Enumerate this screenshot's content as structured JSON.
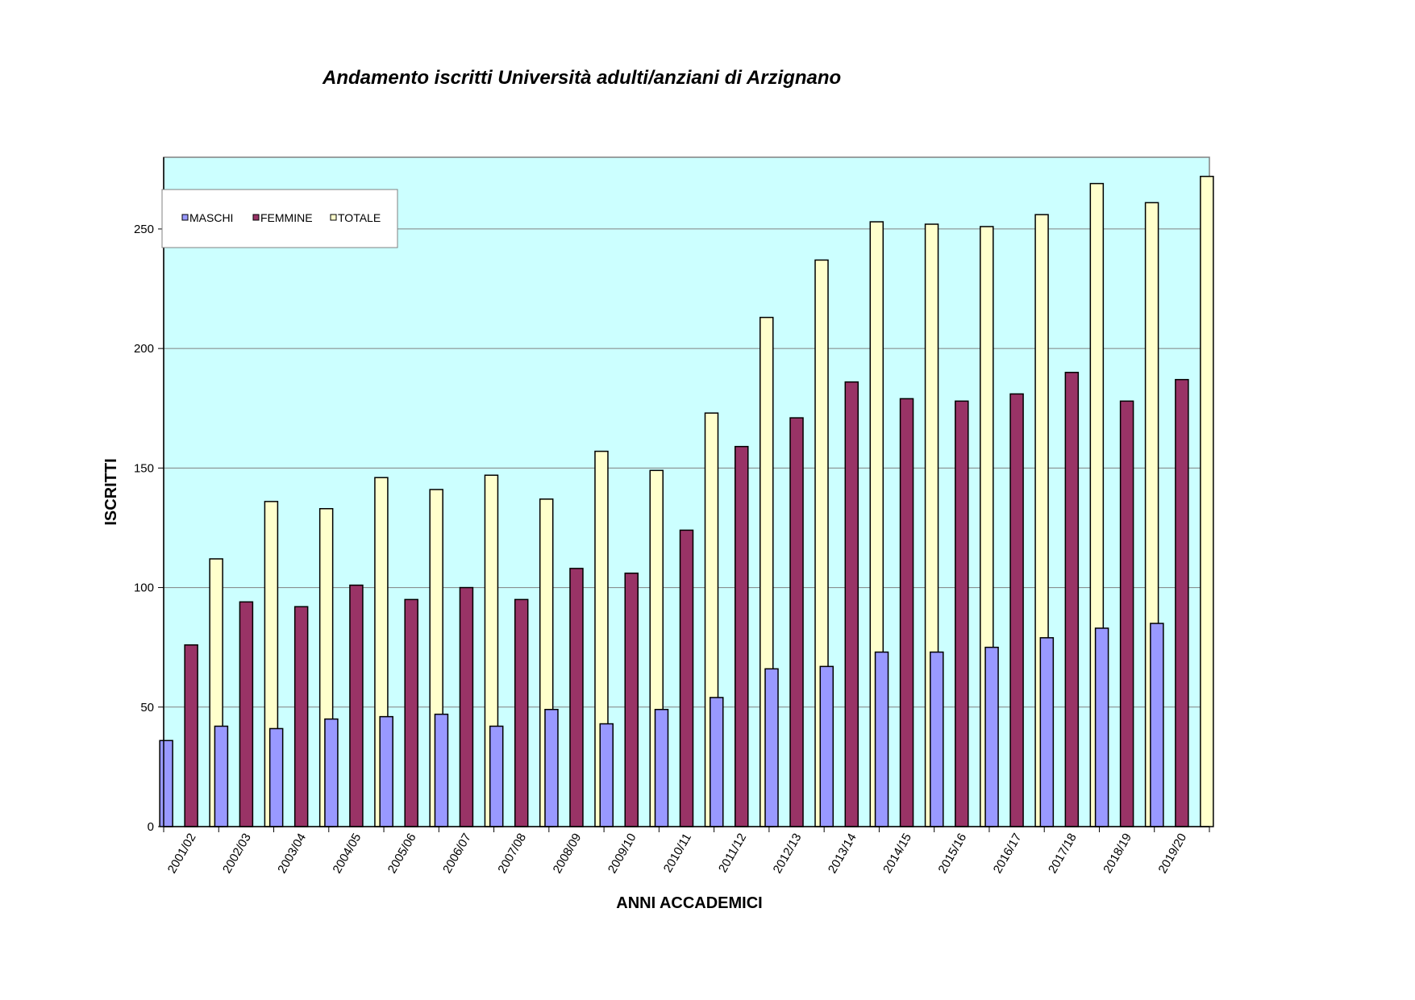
{
  "chart_data": {
    "type": "bar",
    "title": "Andamento iscritti Università adulti/anziani di Arzignano",
    "xlabel": "ANNI ACCADEMICI",
    "ylabel": "ISCRITTI",
    "ylim": [
      0,
      280
    ],
    "yticks": [
      "0",
      "50",
      "100",
      "150",
      "200",
      "250"
    ],
    "grid": true,
    "legend_position": "top-left",
    "categories": [
      "2001/02",
      "2002/03",
      "2003/04",
      "2004/05",
      "2005/06",
      "2006/07",
      "2007/08",
      "2008/09",
      "2009/10",
      "2010/11",
      "2011/12",
      "2012/13",
      "2013/14",
      "2014/15",
      "2015/16",
      "2016/17",
      "2017/18",
      "2018/19",
      "2019/20"
    ],
    "series": [
      {
        "name": "MASCHI",
        "color": "#9999ff",
        "values": [
          36,
          42,
          41,
          45,
          46,
          47,
          42,
          49,
          43,
          49,
          54,
          66,
          67,
          73,
          73,
          75,
          79,
          83,
          85
        ]
      },
      {
        "name": "FEMMINE",
        "color": "#993366",
        "values": [
          76,
          94,
          92,
          101,
          95,
          100,
          95,
          108,
          106,
          124,
          159,
          171,
          186,
          179,
          178,
          181,
          190,
          178,
          187
        ]
      },
      {
        "name": "TOTALE",
        "color": "#ffffcc",
        "values": [
          112,
          136,
          133,
          146,
          141,
          147,
          137,
          157,
          149,
          173,
          213,
          237,
          253,
          252,
          251,
          256,
          269,
          261,
          272
        ]
      }
    ],
    "colors": {
      "plot_background": "#ccffff",
      "gridline": "#808080"
    }
  }
}
